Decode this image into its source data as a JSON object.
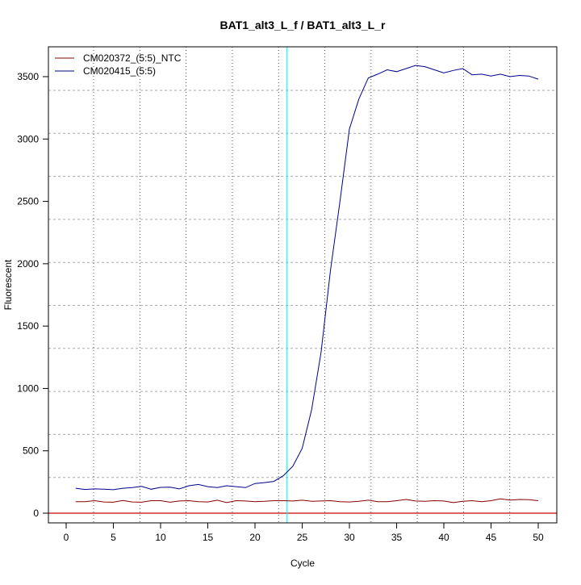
{
  "chart_data": {
    "type": "line",
    "title": "BAT1_alt3_L_f / BAT1_alt3_L_r",
    "xlabel": "Cycle",
    "ylabel": "Fluorescent",
    "xlim": [
      -2,
      52
    ],
    "ylim": [
      -80,
      3720
    ],
    "xticks": [
      0,
      5,
      10,
      15,
      20,
      25,
      30,
      35,
      40,
      45,
      50
    ],
    "yticks": [
      0,
      500,
      1000,
      1500,
      2000,
      2500,
      3000,
      3500
    ],
    "grid": true,
    "legend_position": "top-left",
    "threshold_cycle_line": {
      "value": 23.4,
      "color": "#00ffff"
    },
    "threshold_line": {
      "value": 0,
      "color": "#cc0000"
    },
    "x": [
      1,
      2,
      3,
      4,
      5,
      6,
      7,
      8,
      9,
      10,
      11,
      12,
      13,
      14,
      15,
      16,
      17,
      18,
      19,
      20,
      21,
      22,
      23,
      24,
      25,
      26,
      27,
      28,
      29,
      30,
      31,
      32,
      33,
      34,
      35,
      36,
      37,
      38,
      39,
      40,
      41,
      42,
      43,
      44,
      45,
      46,
      47,
      48,
      49,
      50
    ],
    "series": [
      {
        "name": "CM020372_(5:5)_NTC",
        "color": "#8b0000",
        "values": [
          92,
          92,
          100,
          90,
          88,
          102,
          90,
          88,
          100,
          100,
          88,
          98,
          100,
          92,
          90,
          104,
          85,
          100,
          98,
          92,
          95,
          100,
          100,
          98,
          104,
          95,
          98,
          100,
          92,
          90,
          96,
          104,
          92,
          92,
          100,
          110,
          98,
          95,
          100,
          98,
          85,
          95,
          100,
          92,
          100,
          115,
          105,
          110,
          108,
          100
        ]
      },
      {
        "name": "CM020415_(5:5)",
        "color": "#00008b",
        "values": [
          200,
          190,
          195,
          192,
          188,
          200,
          205,
          215,
          192,
          207,
          208,
          195,
          220,
          230,
          213,
          205,
          220,
          213,
          205,
          238,
          245,
          255,
          300,
          375,
          520,
          830,
          1290,
          1950,
          2500,
          3080,
          3320,
          3490,
          3520,
          3555,
          3540,
          3565,
          3590,
          3580,
          3555,
          3530,
          3550,
          3565,
          3515,
          3520,
          3505,
          3520,
          3500,
          3510,
          3505,
          3480
        ]
      }
    ]
  }
}
